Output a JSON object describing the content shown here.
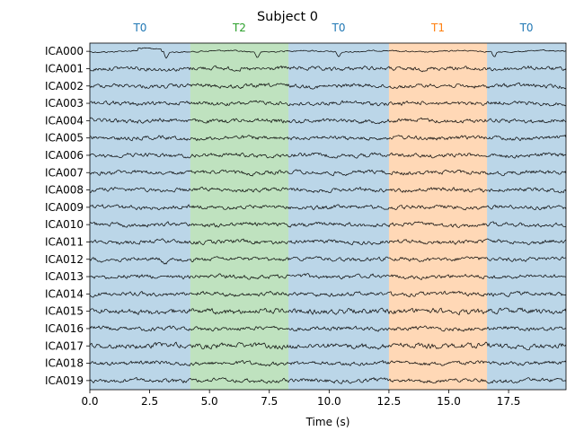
{
  "chart_data": {
    "type": "line",
    "title": "Subject 0",
    "xlabel": "Time (s)",
    "ylabel": "",
    "xlim": [
      0.0,
      19.9
    ],
    "x_ticks": [
      {
        "value": 0.0,
        "label": "0.0"
      },
      {
        "value": 2.5,
        "label": "2.5"
      },
      {
        "value": 5.0,
        "label": "5.0"
      },
      {
        "value": 7.5,
        "label": "7.5"
      },
      {
        "value": 10.0,
        "label": "10.0"
      },
      {
        "value": 12.5,
        "label": "12.5"
      },
      {
        "value": 15.0,
        "label": "15.0"
      },
      {
        "value": 17.5,
        "label": "17.5"
      }
    ],
    "channels": [
      "ICA000",
      "ICA001",
      "ICA002",
      "ICA003",
      "ICA004",
      "ICA005",
      "ICA006",
      "ICA007",
      "ICA008",
      "ICA009",
      "ICA010",
      "ICA011",
      "ICA012",
      "ICA013",
      "ICA014",
      "ICA015",
      "ICA016",
      "ICA017",
      "ICA018",
      "ICA019"
    ],
    "segments": [
      {
        "label": "T0",
        "start": 0.0,
        "end": 4.2,
        "color": "#1f77b4"
      },
      {
        "label": "T2",
        "start": 4.2,
        "end": 8.3,
        "color": "#2ca02c"
      },
      {
        "label": "T0",
        "start": 8.3,
        "end": 12.5,
        "color": "#1f77b4"
      },
      {
        "label": "T1",
        "start": 12.5,
        "end": 16.6,
        "color": "#ff7f0e"
      },
      {
        "label": "T0",
        "start": 16.6,
        "end": 19.9,
        "color": "#1f77b4"
      }
    ],
    "trace_color": "#000000",
    "grid": false,
    "legend": "none"
  }
}
